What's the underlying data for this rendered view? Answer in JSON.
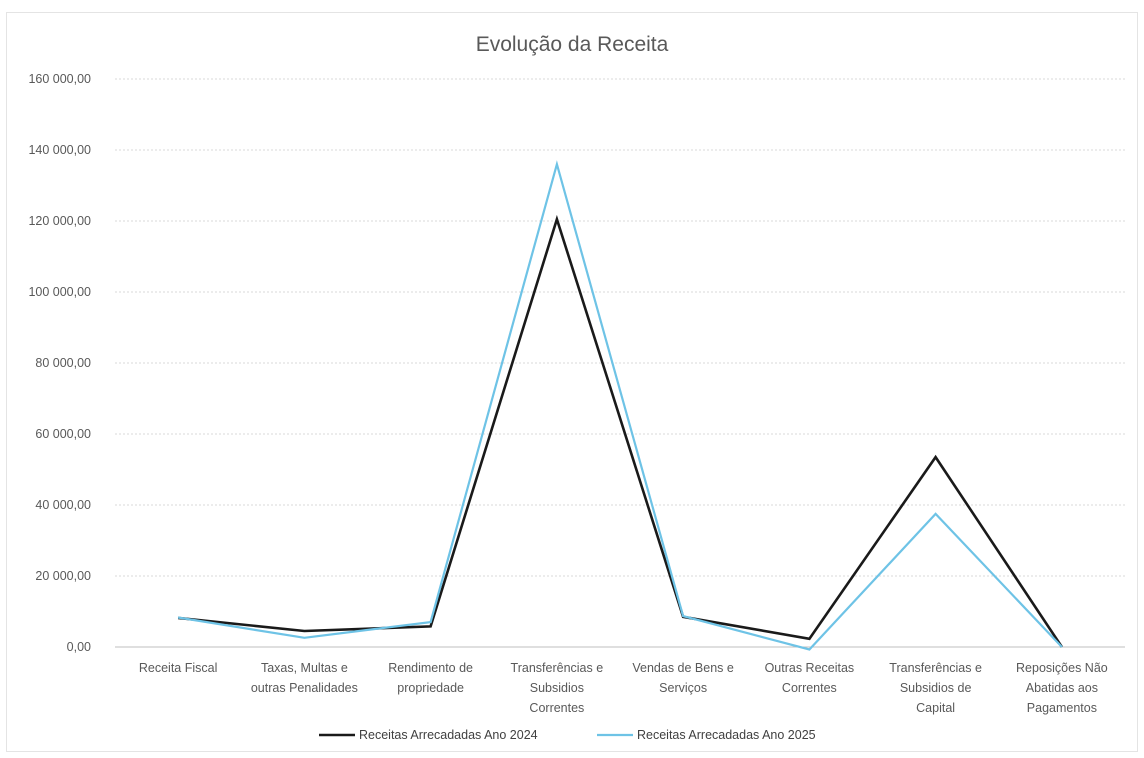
{
  "chart_data": {
    "type": "line",
    "title": "Evolução da Receita",
    "xlabel": "",
    "ylabel": "",
    "ylim": [
      0,
      160000
    ],
    "yticks": [
      0,
      20000,
      40000,
      60000,
      80000,
      100000,
      120000,
      140000,
      160000
    ],
    "ytick_labels": [
      "0,00",
      "20 000,00",
      "40 000,00",
      "60 000,00",
      "80 000,00",
      "100 000,00",
      "120 000,00",
      "140 000,00",
      "160 000,00"
    ],
    "grid": true,
    "legend_position": "bottom",
    "categories": [
      [
        "Receita Fiscal"
      ],
      [
        "Taxas, Multas e",
        "outras Penalidades"
      ],
      [
        "Rendimento de",
        "propriedade"
      ],
      [
        "Transferências e",
        "Subsidios",
        "Correntes"
      ],
      [
        "Vendas de Bens e",
        "Serviços"
      ],
      [
        "Outras Receitas",
        "Correntes"
      ],
      [
        "Transferências e",
        "Subsidios de",
        "Capital"
      ],
      [
        "Reposições Não",
        "Abatidas aos",
        "Pagamentos"
      ]
    ],
    "series": [
      {
        "name": "Receitas Arrecadadas Ano 2024",
        "color": "#1a1a1a",
        "values": [
          8200,
          4500,
          5800,
          120500,
          8500,
          2300,
          53500,
          0
        ]
      },
      {
        "name": "Receitas Arrecadadas Ano 2025",
        "color": "#6ec3e6",
        "values": [
          8300,
          2600,
          7000,
          136000,
          8700,
          -700,
          37500,
          0
        ]
      }
    ]
  }
}
